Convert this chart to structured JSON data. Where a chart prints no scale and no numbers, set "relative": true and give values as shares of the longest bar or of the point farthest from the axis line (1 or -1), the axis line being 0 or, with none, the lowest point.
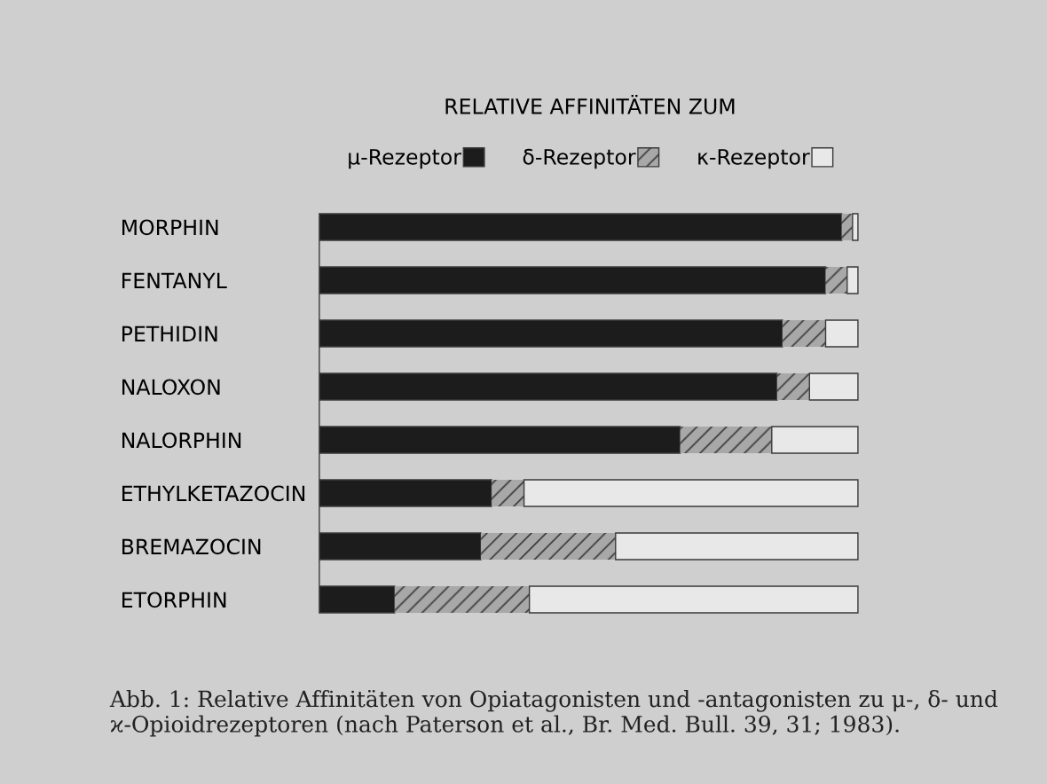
{
  "chart_data": {
    "type": "bar",
    "orientation": "horizontal",
    "stacked": true,
    "relative": true,
    "legend": "top",
    "legend_title": "RELATIVE AFFINITÄTEN ZUM",
    "categories": [
      "MORPHIN",
      "FENTANYL",
      "PETHIDIN",
      "NALOXON",
      "NALORPHIN",
      "ETHYLKETAZOCIN",
      "BREMAZOCIN",
      "ETORPHIN"
    ],
    "series": [
      {
        "name": "μ-Rezeptor",
        "color": "#1c1c1c",
        "values": [
          0.97,
          0.94,
          0.86,
          0.85,
          0.67,
          0.32,
          0.3,
          0.14
        ]
      },
      {
        "name": "δ-Rezeptor",
        "color": "#a8a8a8",
        "values": [
          0.02,
          0.04,
          0.08,
          0.06,
          0.17,
          0.06,
          0.25,
          0.25
        ]
      },
      {
        "name": "κ-Rezeptor",
        "color": "#e8e8e8",
        "values": [
          0.01,
          0.02,
          0.06,
          0.09,
          0.16,
          0.62,
          0.45,
          0.61
        ]
      }
    ],
    "annotations": [
      "Abb. 1: Relative Affinitäten von Opiatagonisten und -antagonisten zu μ-, δ- und ϰ-Opioidrezeptoren (nach Paterson et al., Br. Med. Bull. 39, 31; 1983)."
    ]
  }
}
